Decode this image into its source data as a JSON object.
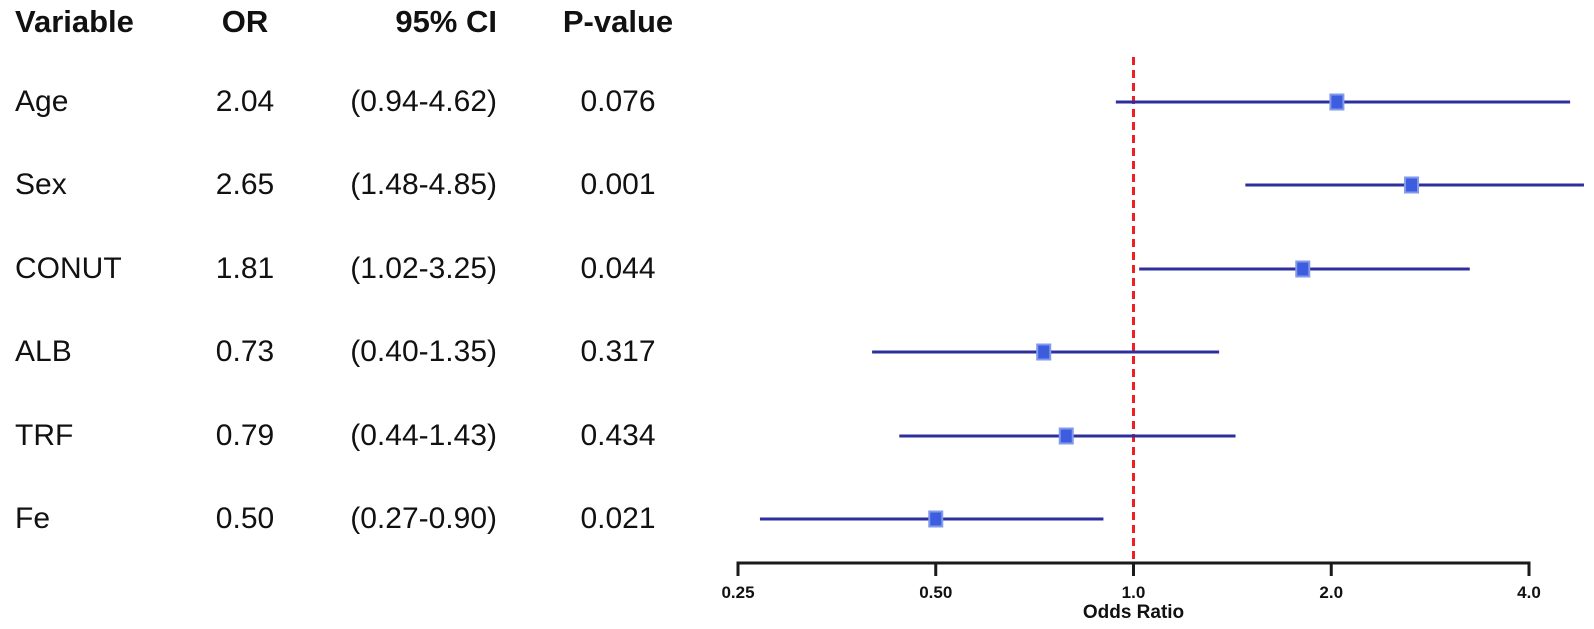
{
  "table": {
    "headers": {
      "variable": "Variable",
      "or": "OR",
      "ci": "95% CI",
      "pvalue": "P-value"
    },
    "rows": [
      {
        "variable": "Age",
        "or": "2.04",
        "ci": "(0.94-4.62)",
        "pvalue": "0.076"
      },
      {
        "variable": "Sex",
        "or": "2.65",
        "ci": "(1.48-4.85)",
        "pvalue": "0.001"
      },
      {
        "variable": "CONUT",
        "or": "1.81",
        "ci": "(1.02-3.25)",
        "pvalue": "0.044"
      },
      {
        "variable": "ALB",
        "or": "0.73",
        "ci": "(0.40-1.35)",
        "pvalue": "0.317"
      },
      {
        "variable": "TRF",
        "or": "0.79",
        "ci": "(0.44-1.43)",
        "pvalue": "0.434"
      },
      {
        "variable": "Fe",
        "or": "0.50",
        "ci": "(0.27-0.90)",
        "pvalue": "0.021"
      }
    ]
  },
  "chart_data": {
    "type": "scatter",
    "subtype": "forest-plot",
    "xlabel": "Odds Ratio",
    "x_scale": "log2",
    "xlim": [
      0.25,
      4.0
    ],
    "x_ticks": [
      0.25,
      0.5,
      1.0,
      2.0,
      4.0
    ],
    "x_tick_labels": [
      "0.25",
      "0.50",
      "1.0",
      "2.0",
      "4.0"
    ],
    "reference_line": 1.0,
    "grid": false,
    "legend": "none",
    "rows": [
      {
        "label": "Age",
        "or": 2.04,
        "ci_low": 0.94,
        "ci_high": 4.62,
        "p": 0.076
      },
      {
        "label": "Sex",
        "or": 2.65,
        "ci_low": 1.48,
        "ci_high": 4.85,
        "p": 0.001
      },
      {
        "label": "CONUT",
        "or": 1.81,
        "ci_low": 1.02,
        "ci_high": 3.25,
        "p": 0.044
      },
      {
        "label": "ALB",
        "or": 0.73,
        "ci_low": 0.4,
        "ci_high": 1.35,
        "p": 0.317
      },
      {
        "label": "TRF",
        "or": 0.79,
        "ci_low": 0.44,
        "ci_high": 1.43,
        "p": 0.434
      },
      {
        "label": "Fe",
        "or": 0.5,
        "ci_low": 0.27,
        "ci_high": 0.9,
        "p": 0.021
      }
    ],
    "colors": {
      "ci_line": "#2e2f9f",
      "marker_fill": "#3d5de0",
      "marker_edge": "#8399ea",
      "reference": "#ed2024",
      "axis": "#1a1a1a",
      "text": "#111111"
    }
  }
}
